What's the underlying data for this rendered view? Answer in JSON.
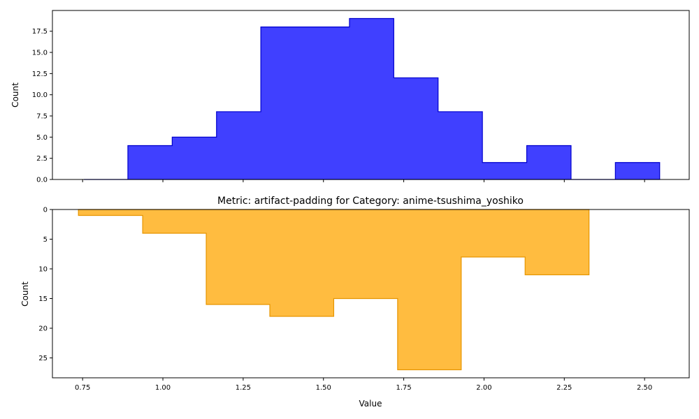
{
  "colors": {
    "top_fill": "#0000ff",
    "top_edge": "#0000cc",
    "bottom_fill": "#ffa500",
    "bottom_edge": "#e69500"
  },
  "chart_data": [
    {
      "type": "histogram",
      "title": "",
      "xlabel": "",
      "ylabel": "Count",
      "xlim": [
        0.656,
        2.639
      ],
      "ylim": [
        0,
        19.95
      ],
      "y_inverted": false,
      "edges": [
        0.754,
        0.891,
        1.029,
        1.167,
        1.305,
        1.443,
        1.581,
        1.719,
        1.857,
        1.995,
        2.133,
        2.271,
        2.409,
        2.547
      ],
      "counts": [
        0,
        4,
        5,
        8,
        18,
        18,
        19,
        12,
        8,
        2,
        4,
        0,
        2
      ],
      "yticks": [
        0.0,
        2.5,
        5.0,
        7.5,
        10.0,
        12.5,
        15.0,
        17.5
      ],
      "ytick_labels": [
        "0.0",
        "2.5",
        "5.0",
        "7.5",
        "10.0",
        "12.5",
        "15.0",
        "17.5"
      ],
      "xticks": [
        0.75,
        1.0,
        1.25,
        1.5,
        1.75,
        2.0,
        2.25,
        2.5
      ],
      "xtick_labels": [
        "",
        "",
        "",
        "",
        "",
        "",
        "",
        ""
      ],
      "fill_opacity": 0.75
    },
    {
      "type": "histogram",
      "title": "Metric: artifact-padding for Category: anime-tsushima_yoshiko",
      "xlabel": "Value",
      "ylabel": "Count",
      "xlim": [
        0.656,
        2.639
      ],
      "ylim": [
        0,
        28.35
      ],
      "y_inverted": true,
      "edges": [
        0.737,
        0.937,
        1.135,
        1.333,
        1.532,
        1.731,
        1.929,
        2.128,
        2.327
      ],
      "counts": [
        1,
        4,
        16,
        18,
        15,
        27,
        8,
        11
      ],
      "yticks": [
        0,
        5,
        10,
        15,
        20,
        25
      ],
      "ytick_labels": [
        "0",
        "5",
        "10",
        "15",
        "20",
        "25"
      ],
      "xticks": [
        0.75,
        1.0,
        1.25,
        1.5,
        1.75,
        2.0,
        2.25,
        2.5
      ],
      "xtick_labels": [
        "0.75",
        "1.00",
        "1.25",
        "1.50",
        "1.75",
        "2.00",
        "2.25",
        "2.50"
      ],
      "fill_opacity": 0.75
    }
  ]
}
